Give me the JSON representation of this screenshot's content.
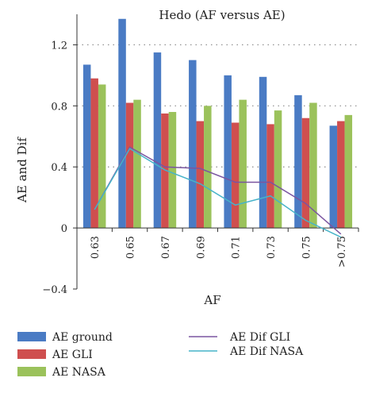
{
  "chart_data": {
    "type": "bar",
    "title": "Hedo (AF versus AE)",
    "xlabel": "AF",
    "ylabel": "AE and Dif",
    "ylim": [
      -0.4,
      1.4
    ],
    "yticks": [
      -0.4,
      0,
      0.4,
      0.8,
      1.2
    ],
    "ytick_labels": [
      "−0.4",
      "0",
      "0.4",
      "0.8",
      "1.2"
    ],
    "grid": "horizontal dotted",
    "legend_position": "bottom",
    "categories": [
      "0.63",
      "0.65",
      "0.67",
      "0.69",
      "0.71",
      "0.73",
      "0.75",
      ">0.75"
    ],
    "series": [
      {
        "name": "AE ground",
        "kind": "bar",
        "color": "#4a7bc4",
        "values": [
          1.07,
          1.37,
          1.15,
          1.1,
          1.0,
          0.99,
          0.87,
          0.67
        ]
      },
      {
        "name": "AE GLI",
        "kind": "bar",
        "color": "#cf4f4f",
        "values": [
          0.98,
          0.82,
          0.75,
          0.7,
          0.69,
          0.68,
          0.72,
          0.7
        ]
      },
      {
        "name": "AE NASA",
        "kind": "bar",
        "color": "#9bc25b",
        "values": [
          0.94,
          0.84,
          0.76,
          0.8,
          0.84,
          0.77,
          0.82,
          0.74
        ]
      },
      {
        "name": "AE Dif GLI",
        "kind": "line",
        "color": "#7a55a0",
        "values": [
          0.12,
          0.53,
          0.4,
          0.39,
          0.3,
          0.3,
          0.16,
          -0.04
        ]
      },
      {
        "name": "AE Dif NASA",
        "kind": "line",
        "color": "#46b3c9",
        "values": [
          0.12,
          0.52,
          0.38,
          0.29,
          0.15,
          0.21,
          0.05,
          -0.06
        ]
      }
    ]
  }
}
